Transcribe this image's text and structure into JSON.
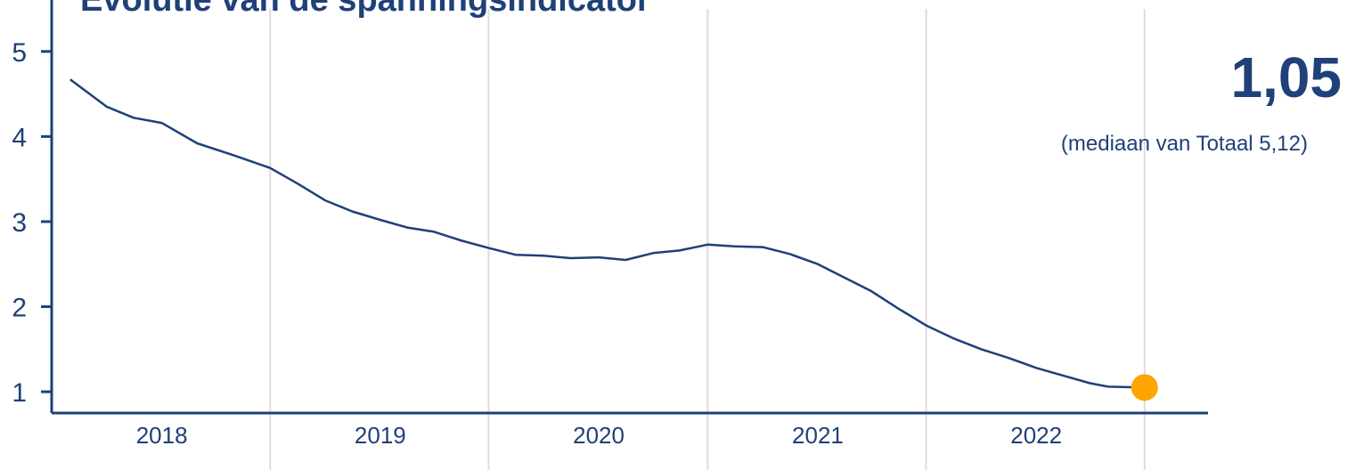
{
  "chart_data": {
    "type": "line",
    "title": "Evolutie van de spanningsindicator",
    "x_tick_labels": [
      "2018",
      "2019",
      "2020",
      "2021",
      "2022"
    ],
    "y_ticks": [
      1,
      2,
      3,
      4,
      5
    ],
    "ylim": [
      0.75,
      5.5
    ],
    "xlim": [
      "2017-07-01",
      "2022-10-15"
    ],
    "grid": "vertical",
    "series": [
      {
        "color": "#1f4078",
        "points": [
          [
            "2017-08-01",
            4.67
          ],
          [
            "2017-10-01",
            4.35
          ],
          [
            "2017-11-15",
            4.22
          ],
          [
            "2018-01-01",
            4.16
          ],
          [
            "2018-03-01",
            3.92
          ],
          [
            "2018-05-01",
            3.78
          ],
          [
            "2018-07-01",
            3.63
          ],
          [
            "2018-08-15",
            3.45
          ],
          [
            "2018-10-01",
            3.25
          ],
          [
            "2018-11-15",
            3.12
          ],
          [
            "2019-01-01",
            3.02
          ],
          [
            "2019-02-15",
            2.93
          ],
          [
            "2019-04-01",
            2.88
          ],
          [
            "2019-05-15",
            2.78
          ],
          [
            "2019-07-01",
            2.69
          ],
          [
            "2019-08-15",
            2.61
          ],
          [
            "2019-10-01",
            2.6
          ],
          [
            "2019-11-15",
            2.57
          ],
          [
            "2020-01-01",
            2.58
          ],
          [
            "2020-02-15",
            2.55
          ],
          [
            "2020-04-01",
            2.63
          ],
          [
            "2020-05-15",
            2.66
          ],
          [
            "2020-07-01",
            2.73
          ],
          [
            "2020-08-15",
            2.71
          ],
          [
            "2020-10-01",
            2.7
          ],
          [
            "2020-11-15",
            2.62
          ],
          [
            "2021-01-01",
            2.5
          ],
          [
            "2021-02-15",
            2.34
          ],
          [
            "2021-04-01",
            2.18
          ],
          [
            "2021-05-15",
            1.98
          ],
          [
            "2021-07-01",
            1.78
          ],
          [
            "2021-08-15",
            1.63
          ],
          [
            "2021-10-01",
            1.5
          ],
          [
            "2021-11-15",
            1.4
          ],
          [
            "2022-01-01",
            1.28
          ],
          [
            "2022-02-15",
            1.19
          ],
          [
            "2022-04-01",
            1.1
          ],
          [
            "2022-05-01",
            1.06
          ],
          [
            "2022-07-01",
            1.05
          ]
        ]
      }
    ],
    "highlight": {
      "x": "2022-07-01",
      "y": 1.05,
      "color": "#ffa500"
    }
  },
  "current_value": "1,05",
  "median_note": "(mediaan van Totaal 5,12)"
}
